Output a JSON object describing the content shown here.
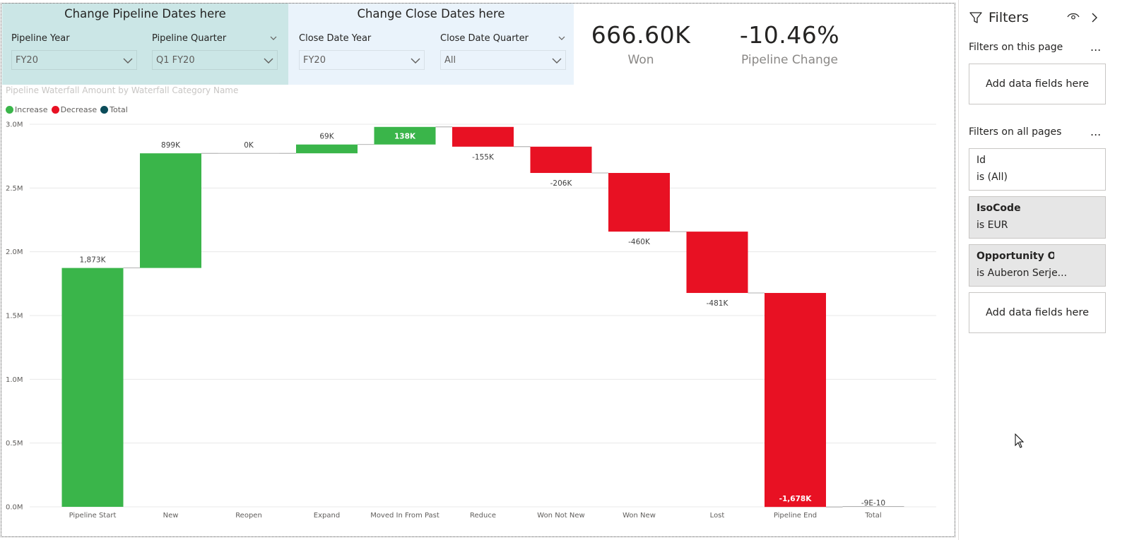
{
  "slicer_panels": {
    "pipeline": {
      "title": "Change Pipeline Dates here",
      "year": {
        "label": "Pipeline Year",
        "value": "FY20"
      },
      "quarter": {
        "label": "Pipeline Quarter",
        "value": "Q1 FY20"
      }
    },
    "close": {
      "title": "Change Close Dates here",
      "year": {
        "label": "Close Date Year",
        "value": "FY20"
      },
      "quarter": {
        "label": "Close Date Quarter",
        "value": "All"
      }
    }
  },
  "cards": [
    {
      "value": "666.60K",
      "label": "Won"
    },
    {
      "value": "-10.46%",
      "label": "Pipeline Change"
    }
  ],
  "chart_data": {
    "type": "waterfall",
    "title": "Pipeline Waterfall Amount by Waterfall Category Name",
    "legend": [
      {
        "name": "Increase",
        "color": "#3ab54a"
      },
      {
        "name": "Decrease",
        "color": "#e81123"
      },
      {
        "name": "Total",
        "color": "#0b4c5a"
      }
    ],
    "ylim": [
      0,
      3.0
    ],
    "y_unit": "M",
    "y_ticks": [
      "0.0M",
      "0.5M",
      "1.0M",
      "1.5M",
      "2.0M",
      "2.5M",
      "3.0M"
    ],
    "categories": [
      "Pipeline Start",
      "New",
      "Reopen",
      "Expand",
      "Moved In From Past",
      "Reduce",
      "Won Not New",
      "Won New",
      "Lost",
      "Pipeline End",
      "Total"
    ],
    "values_k": [
      1873,
      899,
      0,
      69,
      138,
      -155,
      -206,
      -460,
      -481,
      -1678,
      0
    ],
    "labels": [
      "1,873K",
      "899K",
      "0K",
      "69K",
      "138K",
      "-155K",
      "-206K",
      "-460K",
      "-481K",
      "-1,678K",
      "-9E-10"
    ],
    "kinds": [
      "increase",
      "increase",
      "increase",
      "increase",
      "increase",
      "decrease",
      "decrease",
      "decrease",
      "decrease",
      "decrease",
      "total"
    ]
  },
  "filters_pane": {
    "title": "Filters",
    "icons": {
      "filter": "funnel-icon",
      "visibility": "eye-icon",
      "collapse": "chevron-right-icon"
    },
    "this_page_label": "Filters on this page",
    "all_pages_label": "Filters on all pages",
    "more_label": "...",
    "add_fields_label": "Add data fields here",
    "filters": [
      {
        "name": "Id",
        "value": "is (All)",
        "active": false
      },
      {
        "name": "IsoCode",
        "value": "is EUR",
        "active": true
      },
      {
        "name": "Opportunity Ow",
        "value": "is Auberon Serje...",
        "active": true
      }
    ]
  }
}
